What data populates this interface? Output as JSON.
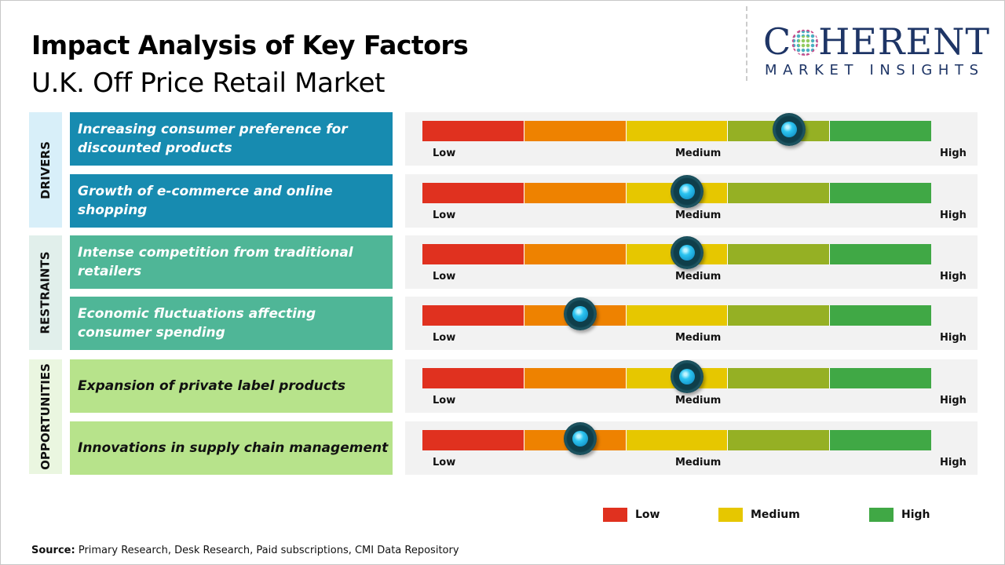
{
  "header": {
    "title": "Impact Analysis of Key Factors",
    "subtitle": "U.K. Off Price Retail Market"
  },
  "logo": {
    "top": "C●HERENT",
    "word_c": "C",
    "word_rest": "HERENT",
    "bottom": "MARKET INSIGHTS"
  },
  "scale_labels": {
    "low": "Low",
    "medium": "Medium",
    "high": "High"
  },
  "segment_colors": [
    "#e0311f",
    "#ee8200",
    "#e6c700",
    "#95b024",
    "#40a845"
  ],
  "groups": [
    {
      "label": "DRIVERS",
      "box_color": "#178bb0",
      "bg_color": "#d8eff9",
      "text_color": "#ffffff"
    },
    {
      "label": "RESTRAINTS",
      "box_color": "#4fb697",
      "bg_color": "#e1efeb",
      "text_color": "#ffffff"
    },
    {
      "label": "OPPORTUNITIES",
      "box_color": "#b7e38b",
      "bg_color": "#eaf6e0",
      "text_color": "#111111"
    }
  ],
  "chart_data": {
    "type": "gauge-table",
    "scale": [
      "Low",
      "Medium",
      "High"
    ],
    "factors": [
      {
        "group": "DRIVERS",
        "text": "Increasing consumer preference for discounted products",
        "impact": 0.72
      },
      {
        "group": "DRIVERS",
        "text": "Growth of e-commerce and online shopping",
        "impact": 0.52
      },
      {
        "group": "RESTRAINTS",
        "text": "Intense competition from traditional retailers",
        "impact": 0.52
      },
      {
        "group": "RESTRAINTS",
        "text": "Economic fluctuations affecting consumer spending",
        "impact": 0.31
      },
      {
        "group": "OPPORTUNITIES",
        "text": "Expansion of private label products",
        "impact": 0.52
      },
      {
        "group": "OPPORTUNITIES",
        "text": "Innovations in supply chain management",
        "impact": 0.31
      }
    ],
    "legend": [
      {
        "label": "Low",
        "color": "#e0311f"
      },
      {
        "label": "Medium",
        "color": "#e6c700"
      },
      {
        "label": "High",
        "color": "#40a845"
      }
    ]
  },
  "source": {
    "label": "Source:",
    "text": "Primary Research, Desk Research, Paid subscriptions, CMI Data Repository"
  }
}
